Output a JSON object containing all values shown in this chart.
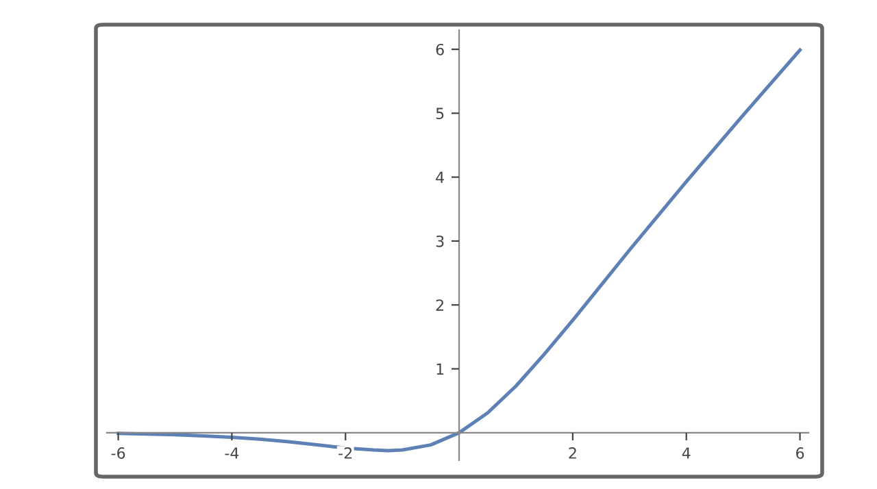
{
  "chart_data": {
    "type": "line",
    "x": [
      -6,
      -5.5,
      -5,
      -4.5,
      -4,
      -3.5,
      -3,
      -2.5,
      -2,
      -1.5,
      -1.25,
      -1,
      -0.5,
      0,
      0.5,
      1,
      1.5,
      2,
      2.5,
      3,
      4,
      5,
      6
    ],
    "series": [
      {
        "color": "#5e81b5",
        "values": [
          -0.01,
          -0.02,
          -0.03,
          -0.05,
          -0.07,
          -0.1,
          -0.14,
          -0.19,
          -0.24,
          -0.27,
          -0.28,
          -0.27,
          -0.19,
          0,
          0.31,
          0.73,
          1.23,
          1.76,
          2.31,
          2.86,
          3.93,
          4.97,
          5.99
        ]
      }
    ],
    "xlim": [
      -6.2,
      6.15
    ],
    "ylim": [
      -0.43,
      6.3
    ],
    "xticks": [
      -6,
      -4,
      -2,
      2,
      4,
      6
    ],
    "yticks": [
      1,
      2,
      3,
      4,
      5,
      6
    ],
    "grid": false,
    "legend": false,
    "marker": "none",
    "line_style": "solid"
  }
}
